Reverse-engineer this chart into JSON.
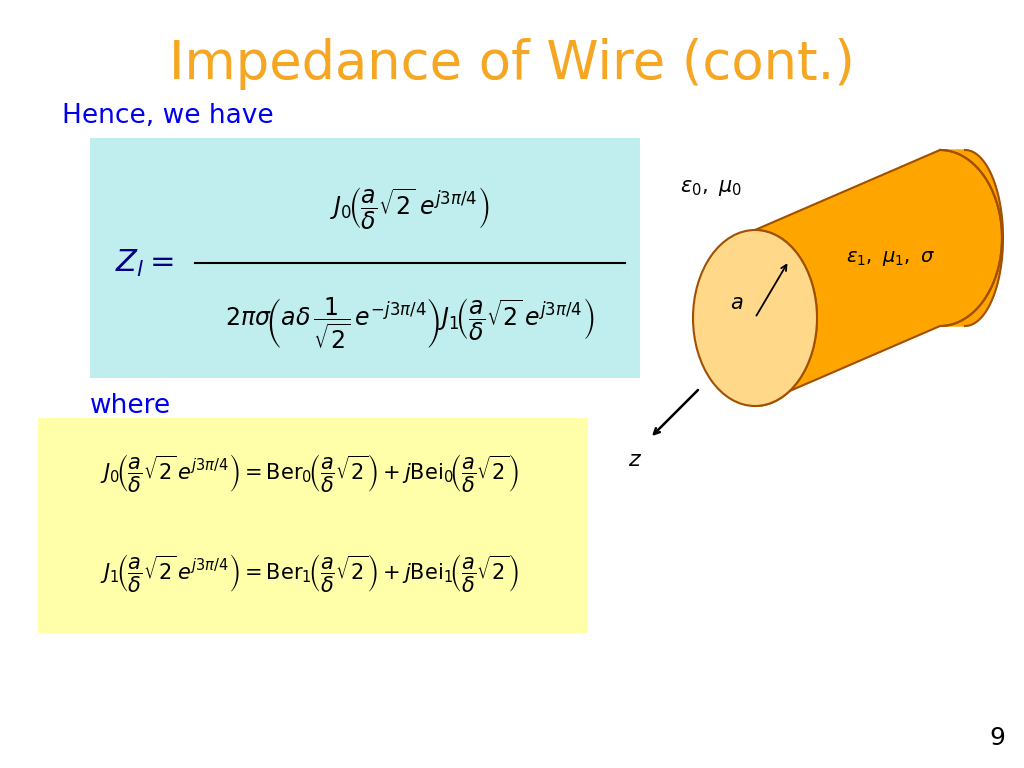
{
  "title": "Impedance of Wire (cont.)",
  "title_color": "#F5A623",
  "title_fontsize": 38,
  "bg_color": "#FFFFFF",
  "blue_text_color": "#0000EE",
  "black_text_color": "#000000",
  "cyan_box_color": "#C0EEEE",
  "yellow_box_color": "#FFFFAA",
  "slide_number": "9",
  "orange_cylinder_color": "#FFA500",
  "orange_cylinder_light": "#FFD88A",
  "orange_cylinder_outline": "#A05000"
}
